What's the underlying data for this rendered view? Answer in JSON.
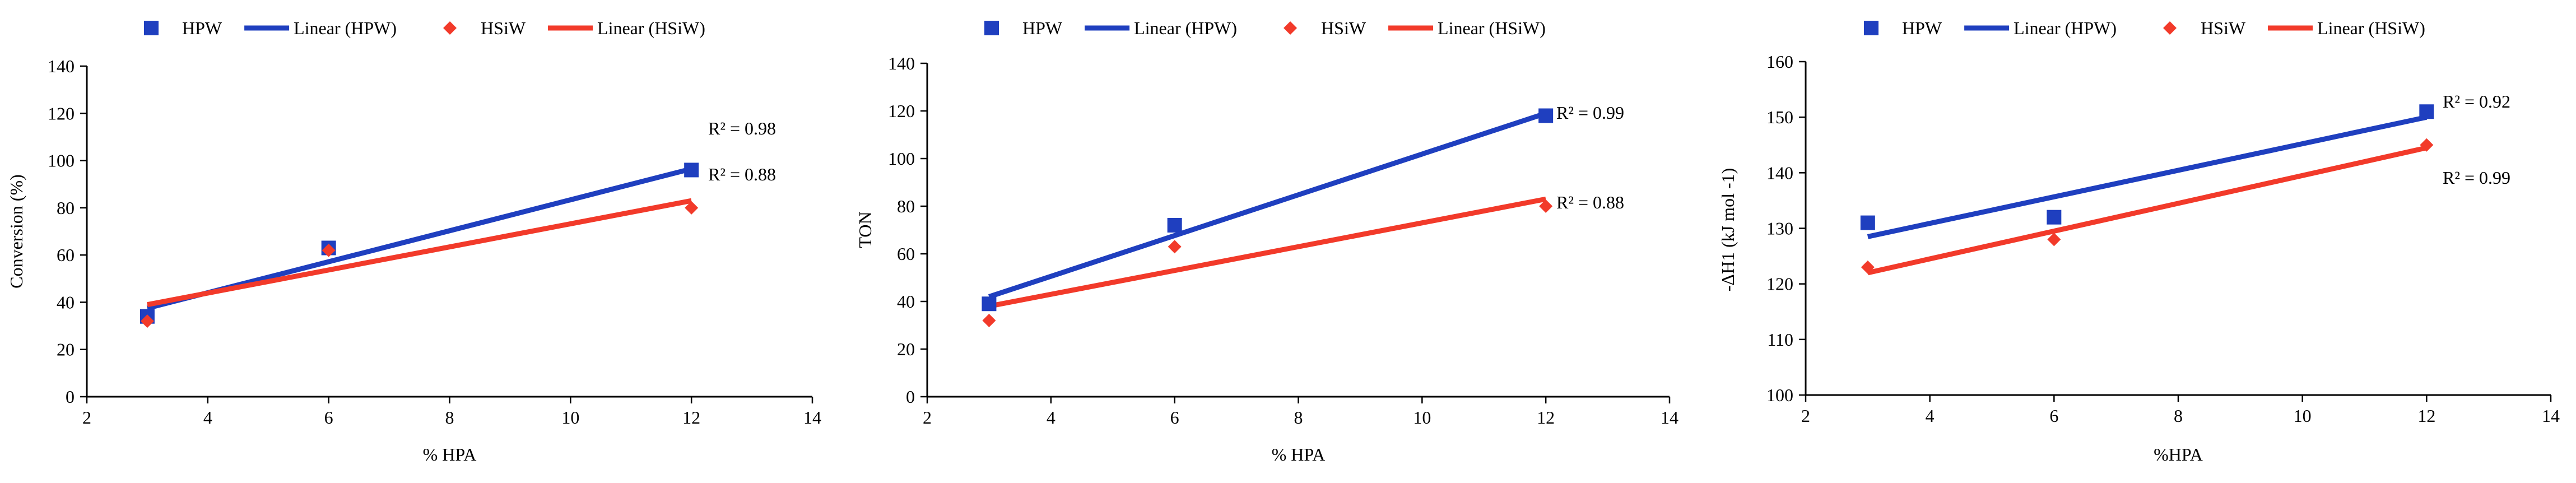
{
  "chart_data": [
    {
      "type": "scatter",
      "title": "",
      "xlabel": "% HPA",
      "ylabel": "Conversion (%)",
      "xlim": [
        2,
        14
      ],
      "ylim": [
        0,
        140
      ],
      "xticks": [
        2,
        4,
        6,
        8,
        10,
        12,
        14
      ],
      "yticks": [
        0,
        20,
        40,
        60,
        80,
        100,
        120,
        140
      ],
      "grid": false,
      "legend": "top",
      "series": [
        {
          "name": "HPW",
          "marker": "square",
          "color": "#1f3fbf",
          "x": [
            3,
            6,
            12
          ],
          "values": [
            34,
            63,
            96
          ]
        },
        {
          "name": "HSiW",
          "marker": "diamond",
          "color": "#f23a2a",
          "x": [
            3,
            6,
            12
          ],
          "values": [
            32,
            62,
            80
          ]
        }
      ],
      "trendlines": [
        {
          "name": "Linear (HPW)",
          "color": "#1f3fbf",
          "x": [
            3,
            12
          ],
          "values": [
            37.5,
            96.5
          ],
          "r2": "R² = 0.98"
        },
        {
          "name": "Linear (HSiW)",
          "color": "#f23a2a",
          "x": [
            3,
            12
          ],
          "values": [
            39,
            83
          ],
          "r2": "R² = 0.88"
        }
      ]
    },
    {
      "type": "scatter",
      "title": "",
      "xlabel": "% HPA",
      "ylabel": "TON",
      "xlim": [
        2,
        14
      ],
      "ylim": [
        0,
        140
      ],
      "xticks": [
        2,
        4,
        6,
        8,
        10,
        12,
        14
      ],
      "yticks": [
        0,
        20,
        40,
        60,
        80,
        100,
        120,
        140
      ],
      "grid": false,
      "legend": "top",
      "series": [
        {
          "name": "HPW",
          "marker": "square",
          "color": "#1f3fbf",
          "x": [
            3,
            6,
            12
          ],
          "values": [
            39,
            72,
            118
          ]
        },
        {
          "name": "HSiW",
          "marker": "diamond",
          "color": "#f23a2a",
          "x": [
            3,
            6,
            12
          ],
          "values": [
            32,
            63,
            80
          ]
        }
      ],
      "trendlines": [
        {
          "name": "Linear (HPW)",
          "color": "#1f3fbf",
          "x": [
            3,
            12
          ],
          "values": [
            42,
            119
          ],
          "r2": "R² = 0.99"
        },
        {
          "name": "Linear (HSiW)",
          "color": "#f23a2a",
          "x": [
            3,
            12
          ],
          "values": [
            38,
            83
          ],
          "r2": "R² = 0.88"
        }
      ]
    },
    {
      "type": "scatter",
      "title": "",
      "xlabel": "%HPA",
      "ylabel": "-ΔH1 (kJ mol -1)",
      "xlim": [
        2,
        14
      ],
      "ylim": [
        100,
        160
      ],
      "xticks": [
        2,
        4,
        6,
        8,
        10,
        12,
        14
      ],
      "yticks": [
        100,
        110,
        120,
        130,
        140,
        150,
        160
      ],
      "grid": false,
      "legend": "top",
      "series": [
        {
          "name": "HPW",
          "marker": "square",
          "color": "#1f3fbf",
          "x": [
            3,
            6,
            12
          ],
          "values": [
            131,
            132,
            151
          ]
        },
        {
          "name": "HSiW",
          "marker": "diamond",
          "color": "#f23a2a",
          "x": [
            3,
            6,
            12
          ],
          "values": [
            123,
            128,
            145
          ]
        }
      ],
      "trendlines": [
        {
          "name": "Linear (HPW)",
          "color": "#1f3fbf",
          "x": [
            3,
            12
          ],
          "values": [
            128.5,
            150
          ],
          "r2": "R² = 0.92"
        },
        {
          "name": "Linear (HSiW)",
          "color": "#f23a2a",
          "x": [
            3,
            12
          ],
          "values": [
            122,
            144.5
          ],
          "r2": "R² = 0.99"
        }
      ]
    }
  ]
}
